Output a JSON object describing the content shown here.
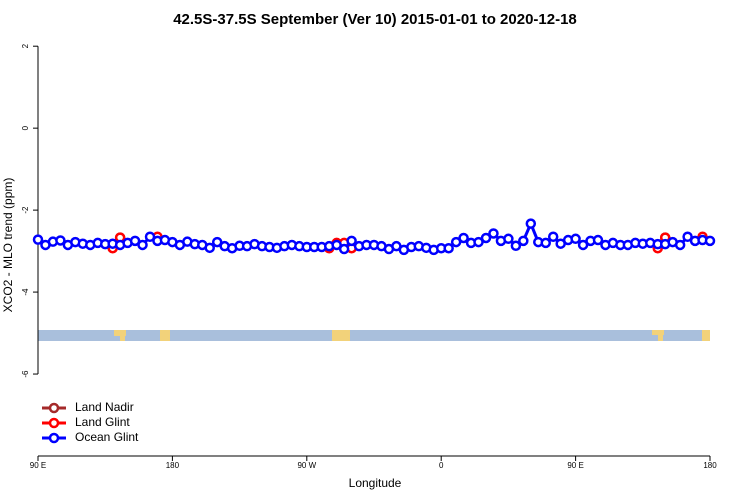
{
  "chart_data": {
    "type": "line",
    "title": "42.5S-37.5S September (Ver 10)   2015-01-01 to 2020-12-18",
    "xlabel": "Longitude",
    "ylabel": "XCO2 - MLO trend (ppm)",
    "x": [
      90,
      95,
      100,
      105,
      110,
      115,
      120,
      125,
      130,
      135,
      140,
      145,
      150,
      155,
      160,
      165,
      170,
      175,
      180,
      185,
      190,
      195,
      200,
      205,
      210,
      215,
      220,
      225,
      230,
      235,
      240,
      245,
      250,
      255,
      260,
      265,
      270,
      275,
      280,
      285,
      290,
      295,
      300,
      305,
      310,
      315,
      320,
      325,
      330,
      335,
      340,
      345,
      350,
      355,
      360,
      365,
      370,
      375,
      380,
      385,
      390,
      395,
      400,
      405,
      410,
      415,
      420,
      425,
      430,
      435,
      440,
      445,
      450,
      455,
      460,
      465,
      470,
      475,
      480,
      485,
      490,
      495,
      500,
      505,
      510,
      515,
      520,
      525,
      530,
      535,
      540
    ],
    "series": [
      {
        "name": "Land Nadir",
        "color": "#a52a2a",
        "values": [
          null,
          null,
          null,
          null,
          null,
          null,
          null,
          null,
          null,
          null,
          null,
          -2.67,
          null,
          null,
          null,
          null,
          null,
          null,
          null,
          null,
          null,
          null,
          null,
          null,
          null,
          null,
          null,
          null,
          null,
          null,
          null,
          null,
          null,
          null,
          null,
          null,
          null,
          null,
          null,
          null,
          null,
          null,
          null,
          null,
          null,
          null,
          null,
          null,
          null,
          null,
          null,
          null,
          null,
          null,
          null,
          null,
          null,
          null,
          null,
          null,
          null,
          null,
          null,
          null,
          null,
          null,
          null,
          null,
          null,
          null,
          null,
          null,
          null,
          null,
          null,
          null,
          null,
          null,
          null,
          null,
          null,
          null,
          null,
          null,
          -2.67,
          null,
          null,
          null,
          null,
          null,
          null
        ]
      },
      {
        "name": "Land Glint",
        "color": "#ff0000",
        "values": [
          null,
          null,
          null,
          null,
          null,
          null,
          null,
          null,
          null,
          null,
          -2.93,
          -2.67,
          null,
          null,
          null,
          null,
          -2.65,
          null,
          null,
          null,
          null,
          null,
          null,
          null,
          null,
          null,
          null,
          null,
          null,
          null,
          null,
          null,
          null,
          null,
          null,
          null,
          null,
          null,
          null,
          -2.93,
          -2.8,
          -2.8,
          -2.93,
          null,
          null,
          null,
          null,
          null,
          null,
          null,
          null,
          null,
          null,
          null,
          null,
          null,
          null,
          null,
          null,
          null,
          null,
          null,
          null,
          null,
          null,
          null,
          null,
          null,
          null,
          null,
          null,
          null,
          null,
          null,
          null,
          null,
          null,
          null,
          null,
          null,
          null,
          null,
          null,
          -2.93,
          -2.67,
          null,
          null,
          null,
          null,
          -2.65,
          null
        ]
      },
      {
        "name": "Ocean Glint",
        "color": "#0000ff",
        "values": [
          -2.72,
          -2.85,
          -2.77,
          -2.74,
          -2.85,
          -2.78,
          -2.82,
          -2.85,
          -2.8,
          -2.83,
          -2.82,
          -2.85,
          -2.8,
          -2.75,
          -2.85,
          -2.65,
          -2.75,
          -2.73,
          -2.78,
          -2.85,
          -2.77,
          -2.83,
          -2.85,
          -2.92,
          -2.78,
          -2.88,
          -2.93,
          -2.87,
          -2.88,
          -2.83,
          -2.88,
          -2.9,
          -2.92,
          -2.88,
          -2.85,
          -2.88,
          -2.9,
          -2.9,
          -2.9,
          -2.88,
          -2.85,
          -2.95,
          -2.75,
          -2.88,
          -2.85,
          -2.85,
          -2.88,
          -2.95,
          -2.88,
          -2.97,
          -2.9,
          -2.88,
          -2.92,
          -2.97,
          -2.93,
          -2.93,
          -2.78,
          -2.68,
          -2.8,
          -2.78,
          -2.68,
          -2.57,
          -2.75,
          -2.7,
          -2.87,
          -2.75,
          -2.33,
          -2.78,
          -2.8,
          -2.65,
          -2.82,
          -2.73,
          -2.7,
          -2.85,
          -2.75,
          -2.73,
          -2.85,
          -2.8,
          -2.85,
          -2.85,
          -2.8,
          -2.82,
          -2.8,
          -2.83,
          -2.83,
          -2.78,
          -2.85,
          -2.65,
          -2.75,
          -2.73,
          -2.75
        ]
      }
    ],
    "xlim": [
      90,
      540
    ],
    "xticks": [
      {
        "value": 90,
        "label": "90 E"
      },
      180,
      {
        "value": 270,
        "label": "90 W"
      },
      {
        "value": 360,
        "label": "0"
      },
      {
        "value": 450,
        "label": "90 E"
      },
      {
        "value": 540,
        "label": "180"
      }
    ],
    "ylim": [
      -8,
      2.2
    ],
    "yticks": [
      2,
      0,
      -2,
      -4,
      -6
    ],
    "legend": "bottom-left"
  }
}
